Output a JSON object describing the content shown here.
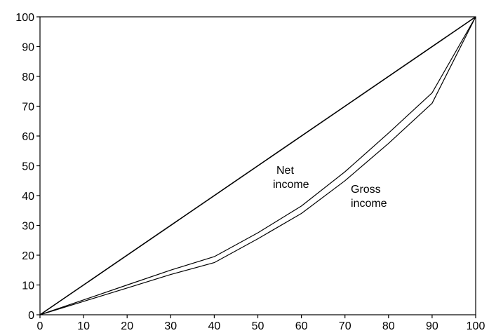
{
  "chart_data": {
    "type": "line",
    "title": "",
    "xlabel": "",
    "ylabel": "",
    "xlim": [
      0,
      100
    ],
    "ylim": [
      0,
      100
    ],
    "grid": false,
    "xticks": [
      0,
      10,
      20,
      30,
      40,
      50,
      60,
      70,
      80,
      90,
      100
    ],
    "yticks": [
      0,
      10,
      20,
      30,
      40,
      50,
      60,
      70,
      80,
      90,
      100
    ],
    "series": [
      {
        "key": "equality",
        "x": [
          0,
          100
        ],
        "y": [
          0,
          100
        ],
        "color": "#000000"
      },
      {
        "key": "net",
        "name": "Net income",
        "label_lines": [
          "Net",
          "income"
        ],
        "x": [
          0,
          10,
          20,
          30,
          40,
          50,
          60,
          70,
          80,
          90,
          100
        ],
        "y": [
          0,
          5,
          10,
          15,
          19.5,
          27.5,
          36.5,
          48,
          61,
          74.5,
          100
        ],
        "color": "#000000"
      },
      {
        "key": "gross",
        "name": "Gross income",
        "label_lines": [
          "Gross",
          "income"
        ],
        "x": [
          0,
          10,
          20,
          30,
          40,
          50,
          60,
          70,
          80,
          90,
          100
        ],
        "y": [
          0,
          4.5,
          9,
          13.5,
          17.5,
          25.5,
          34,
          45,
          57.5,
          71,
          100
        ],
        "color": "#000000"
      }
    ]
  }
}
